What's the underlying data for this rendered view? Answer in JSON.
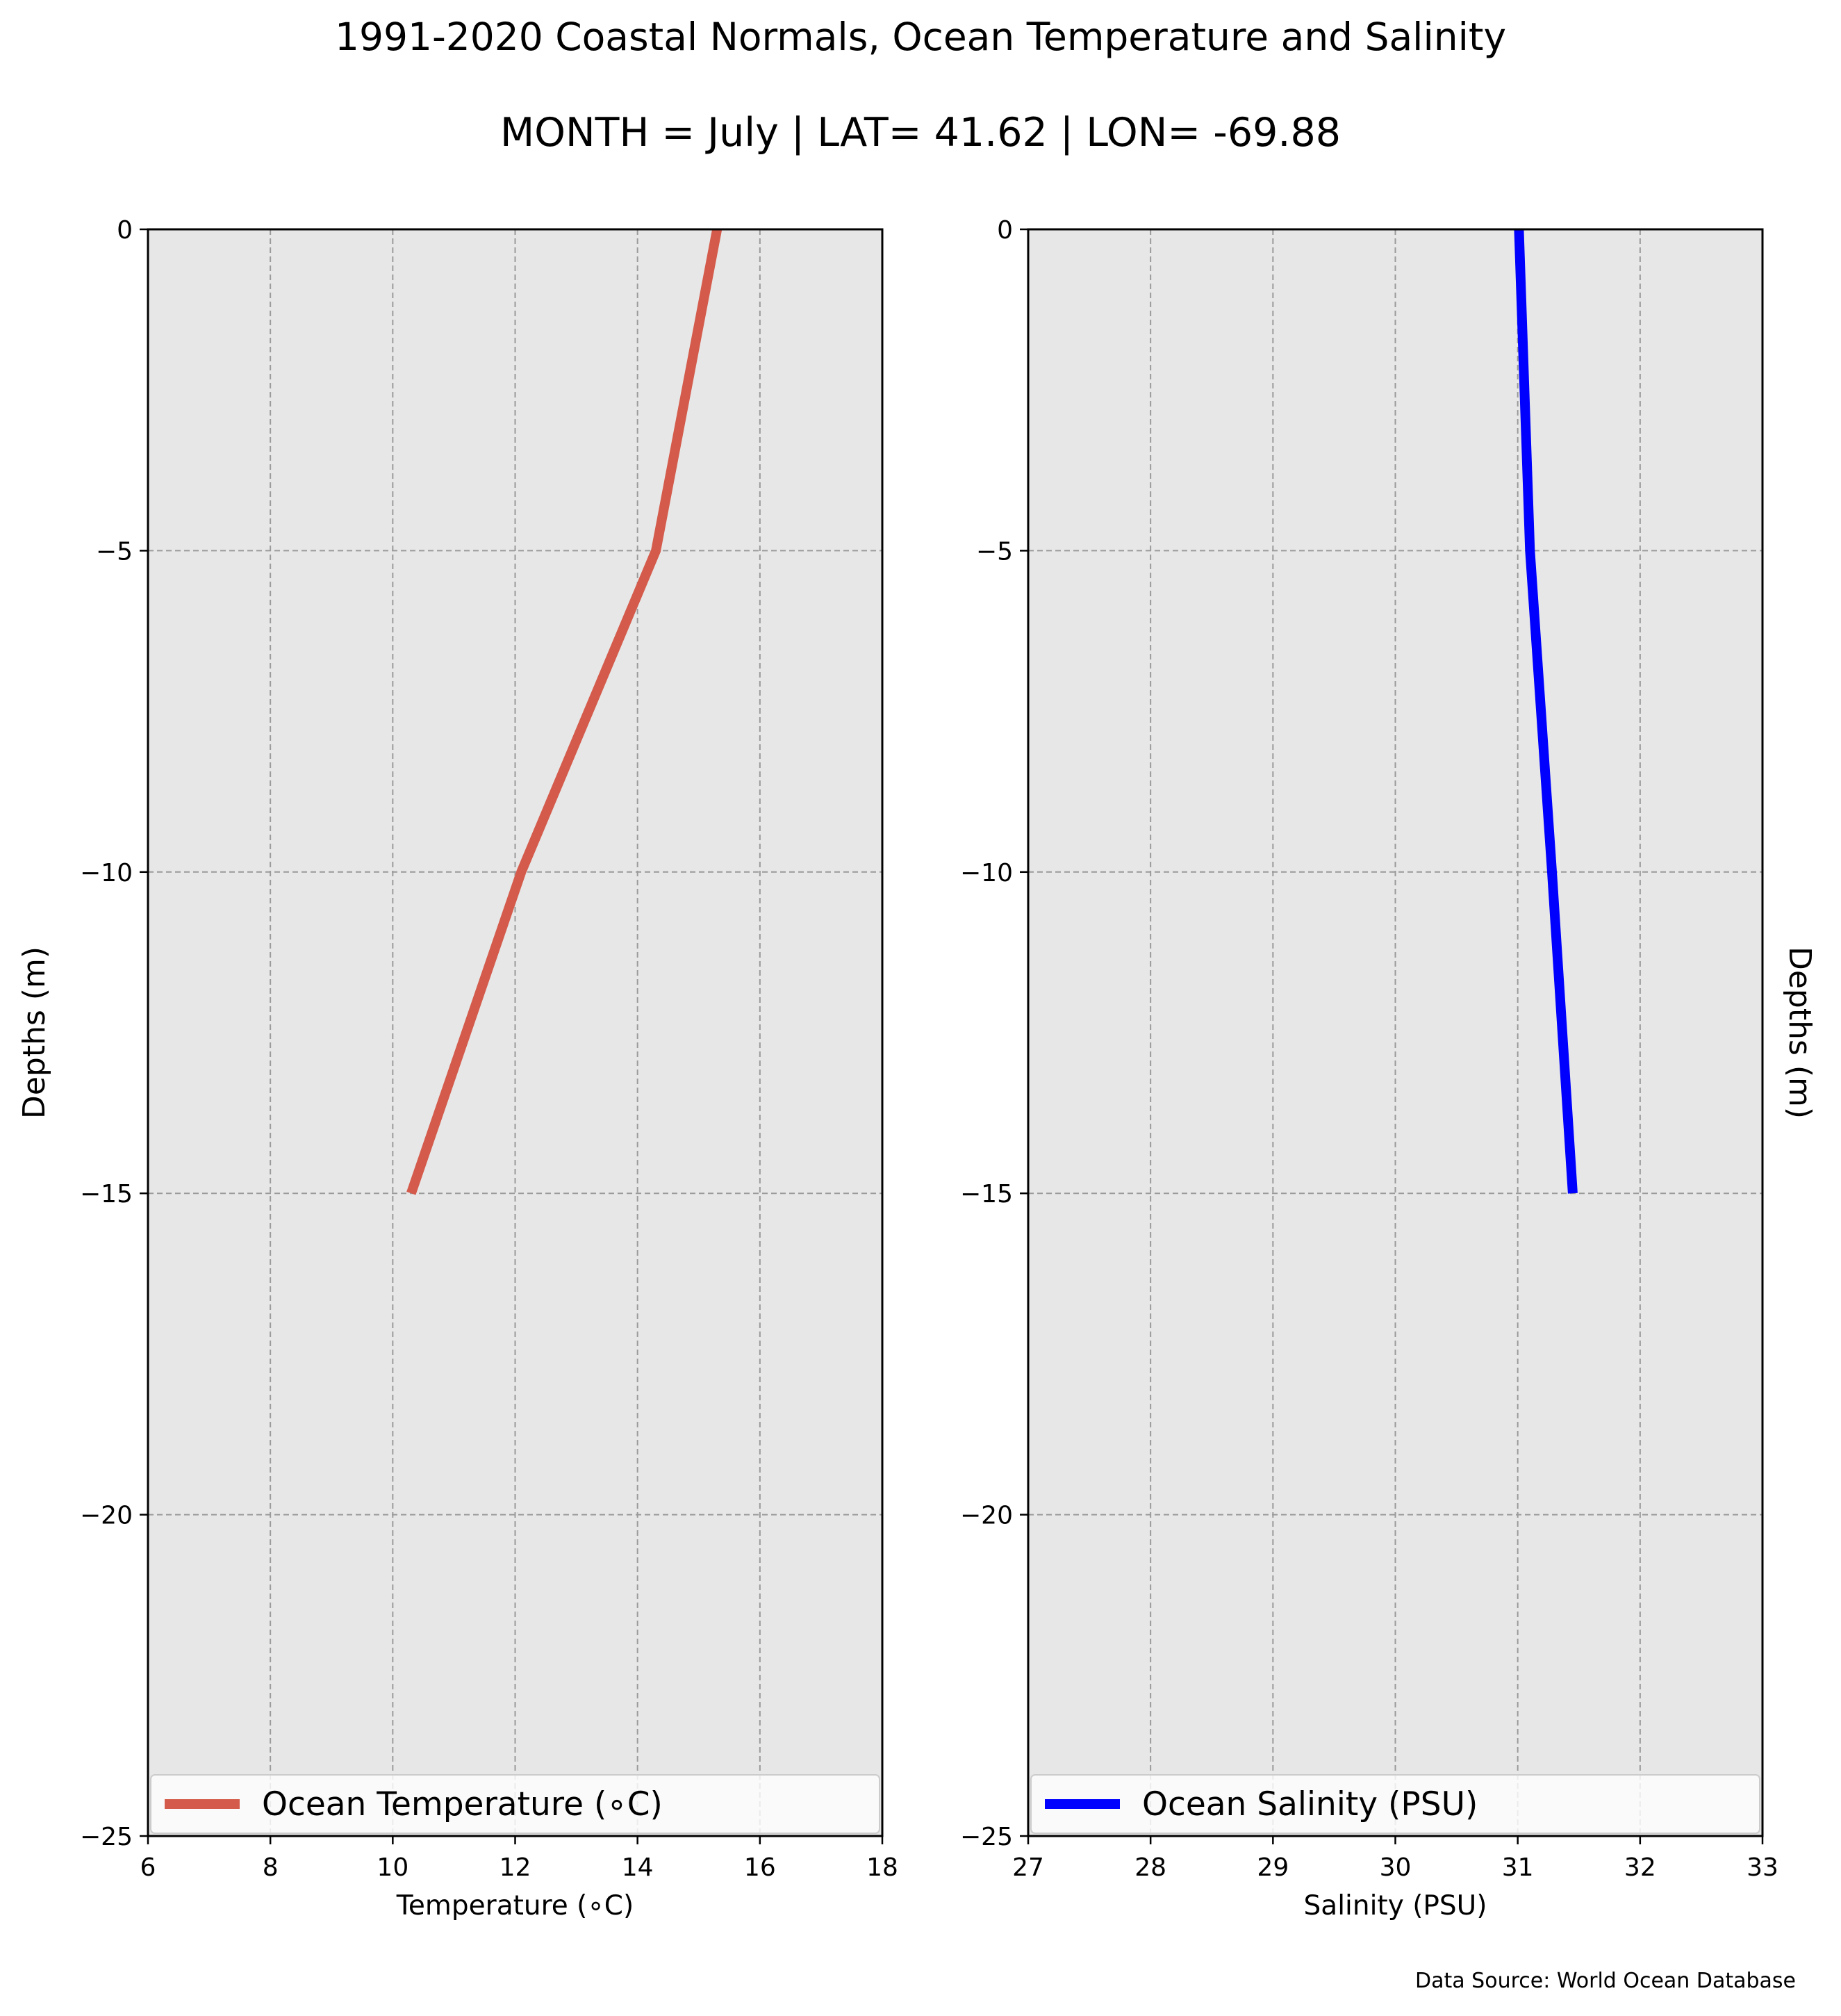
{
  "figure": {
    "title": "1991-2020 Coastal Normals, Ocean Temperature and Salinity",
    "subtitle": "MONTH = July | LAT= 41.62 | LON= -69.88",
    "source": "Data Source: World Ocean Database"
  },
  "chart_data": [
    {
      "type": "line",
      "xlabel": "Temperature (∘C)",
      "ylabel": "Depths (m)",
      "ylabel_side": "left",
      "xlim": [
        6,
        18
      ],
      "ylim": [
        -25,
        0
      ],
      "xticks": [
        6,
        8,
        10,
        12,
        14,
        16,
        18
      ],
      "yticks": [
        0,
        -5,
        -10,
        -15,
        -20,
        -25
      ],
      "grid": true,
      "background": "#e7e7e7",
      "legend_placement": "lower",
      "series": [
        {
          "name": "Ocean Temperature (∘C)",
          "color": "#d45b4b",
          "x": [
            15.3,
            14.3,
            12.1,
            10.3
          ],
          "y": [
            0,
            -5,
            -10,
            -15
          ]
        }
      ]
    },
    {
      "type": "line",
      "xlabel": "Salinity (PSU)",
      "ylabel": "Depths (m)",
      "ylabel_side": "right",
      "xlim": [
        27,
        33
      ],
      "ylim": [
        -25,
        0
      ],
      "xticks": [
        27,
        28,
        29,
        30,
        31,
        32,
        33
      ],
      "yticks": [
        0,
        -5,
        -10,
        -15,
        -20,
        -25
      ],
      "grid": true,
      "background": "#e7e7e7",
      "legend_placement": "lower",
      "series": [
        {
          "name": "Ocean Salinity (PSU)",
          "color": "#0000ff",
          "x": [
            31.01,
            31.1,
            31.28,
            31.45
          ],
          "y": [
            0,
            -5,
            -10,
            -15
          ]
        }
      ]
    }
  ]
}
